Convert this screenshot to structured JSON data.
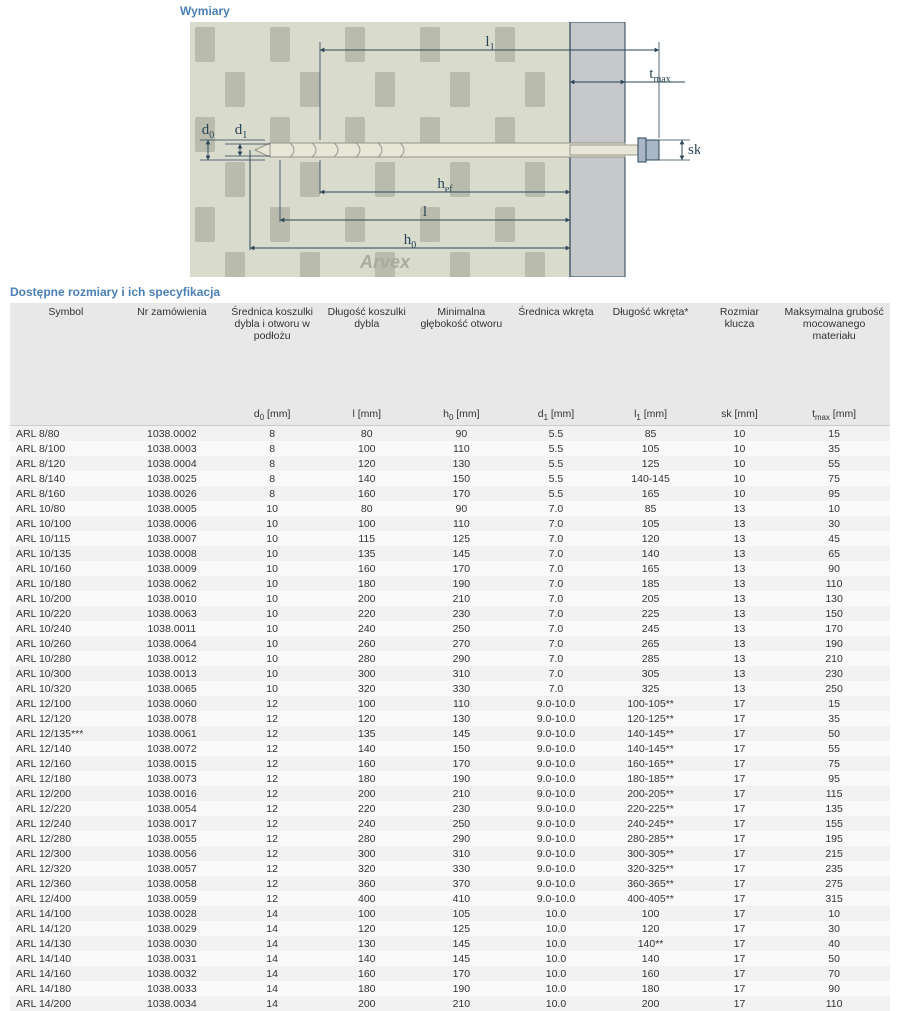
{
  "titles": {
    "dimensions": "Wymiary",
    "sizes": "Dostępne rozmiary i ich specyfikacja"
  },
  "diagram": {
    "labels": {
      "l1": "l",
      "l1sub": "1",
      "tmax": "t",
      "tmaxsub": "max",
      "sk": "sk",
      "d0": "d",
      "d0sub": "0",
      "d1": "d",
      "d1sub": "1",
      "hef": "h",
      "hefsub": "ef",
      "l": "l",
      "h0": "h",
      "h0sub": "0",
      "brand": "Arvex"
    },
    "colors": {
      "wall": "#d9dbcd",
      "bricks": "#b9bcac",
      "fixture": "#c6c8cc",
      "outline": "#2a4558",
      "anchor_body": "#e8e6d6",
      "anchor_stroke": "#98958a",
      "dim": "#2a4558",
      "text": "#2a4558",
      "bolt_head": "#a8b6c6"
    }
  },
  "table": {
    "columns": [
      {
        "top": "Symbol",
        "bot": ""
      },
      {
        "top": "Nr zamówienia",
        "bot": ""
      },
      {
        "top": "Średnica koszulki dybla i otworu w podłożu",
        "bot": "d<sub>0</sub> [mm]"
      },
      {
        "top": "Długość koszulki dybla",
        "bot": "l [mm]"
      },
      {
        "top": "Minimalna głębokość otworu",
        "bot": "h<sub>0</sub> [mm]"
      },
      {
        "top": "Średnica wkręta",
        "bot": "d<sub>1</sub> [mm]"
      },
      {
        "top": "Długość wkręta*",
        "bot": "l<sub>1</sub> [mm]"
      },
      {
        "top": "Rozmiar klucza",
        "bot": "sk [mm]"
      },
      {
        "top": "Maksymalna grubość mocowanego materiału",
        "bot": "t<sub>max</sub> [mm]"
      }
    ],
    "rows": [
      [
        "ARL 8/80",
        "1038.0002",
        "8",
        "80",
        "90",
        "5.5",
        "85",
        "10",
        "15"
      ],
      [
        "ARL 8/100",
        "1038.0003",
        "8",
        "100",
        "110",
        "5.5",
        "105",
        "10",
        "35"
      ],
      [
        "ARL 8/120",
        "1038.0004",
        "8",
        "120",
        "130",
        "5.5",
        "125",
        "10",
        "55"
      ],
      [
        "ARL 8/140",
        "1038.0025",
        "8",
        "140",
        "150",
        "5.5",
        "140-145",
        "10",
        "75"
      ],
      [
        "ARL 8/160",
        "1038.0026",
        "8",
        "160",
        "170",
        "5.5",
        "165",
        "10",
        "95"
      ],
      [
        "ARL 10/80",
        "1038.0005",
        "10",
        "80",
        "90",
        "7.0",
        "85",
        "13",
        "10"
      ],
      [
        "ARL 10/100",
        "1038.0006",
        "10",
        "100",
        "110",
        "7.0",
        "105",
        "13",
        "30"
      ],
      [
        "ARL 10/115",
        "1038.0007",
        "10",
        "115",
        "125",
        "7.0",
        "120",
        "13",
        "45"
      ],
      [
        "ARL 10/135",
        "1038.0008",
        "10",
        "135",
        "145",
        "7.0",
        "140",
        "13",
        "65"
      ],
      [
        "ARL 10/160",
        "1038.0009",
        "10",
        "160",
        "170",
        "7.0",
        "165",
        "13",
        "90"
      ],
      [
        "ARL 10/180",
        "1038.0062",
        "10",
        "180",
        "190",
        "7.0",
        "185",
        "13",
        "110"
      ],
      [
        "ARL 10/200",
        "1038.0010",
        "10",
        "200",
        "210",
        "7.0",
        "205",
        "13",
        "130"
      ],
      [
        "ARL 10/220",
        "1038.0063",
        "10",
        "220",
        "230",
        "7.0",
        "225",
        "13",
        "150"
      ],
      [
        "ARL 10/240",
        "1038.0011",
        "10",
        "240",
        "250",
        "7.0",
        "245",
        "13",
        "170"
      ],
      [
        "ARL 10/260",
        "1038.0064",
        "10",
        "260",
        "270",
        "7.0",
        "265",
        "13",
        "190"
      ],
      [
        "ARL 10/280",
        "1038.0012",
        "10",
        "280",
        "290",
        "7.0",
        "285",
        "13",
        "210"
      ],
      [
        "ARL 10/300",
        "1038.0013",
        "10",
        "300",
        "310",
        "7.0",
        "305",
        "13",
        "230"
      ],
      [
        "ARL 10/320",
        "1038.0065",
        "10",
        "320",
        "330",
        "7.0",
        "325",
        "13",
        "250"
      ],
      [
        "ARL 12/100",
        "1038.0060",
        "12",
        "100",
        "110",
        "9.0-10.0",
        "100-105**",
        "17",
        "15"
      ],
      [
        "ARL 12/120",
        "1038.0078",
        "12",
        "120",
        "130",
        "9.0-10.0",
        "120-125**",
        "17",
        "35"
      ],
      [
        "ARL 12/135***",
        "1038.0061",
        "12",
        "135",
        "145",
        "9.0-10.0",
        "140-145**",
        "17",
        "50"
      ],
      [
        "ARL 12/140",
        "1038.0072",
        "12",
        "140",
        "150",
        "9.0-10.0",
        "140-145**",
        "17",
        "55"
      ],
      [
        "ARL 12/160",
        "1038.0015",
        "12",
        "160",
        "170",
        "9.0-10.0",
        "160-165**",
        "17",
        "75"
      ],
      [
        "ARL 12/180",
        "1038.0073",
        "12",
        "180",
        "190",
        "9.0-10.0",
        "180-185**",
        "17",
        "95"
      ],
      [
        "ARL 12/200",
        "1038.0016",
        "12",
        "200",
        "210",
        "9.0-10.0",
        "200-205**",
        "17",
        "115"
      ],
      [
        "ARL 12/220",
        "1038.0054",
        "12",
        "220",
        "230",
        "9.0-10.0",
        "220-225**",
        "17",
        "135"
      ],
      [
        "ARL 12/240",
        "1038.0017",
        "12",
        "240",
        "250",
        "9.0-10.0",
        "240-245**",
        "17",
        "155"
      ],
      [
        "ARL 12/280",
        "1038.0055",
        "12",
        "280",
        "290",
        "9.0-10.0",
        "280-285**",
        "17",
        "195"
      ],
      [
        "ARL 12/300",
        "1038.0056",
        "12",
        "300",
        "310",
        "9.0-10.0",
        "300-305**",
        "17",
        "215"
      ],
      [
        "ARL 12/320",
        "1038.0057",
        "12",
        "320",
        "330",
        "9.0-10.0",
        "320-325**",
        "17",
        "235"
      ],
      [
        "ARL 12/360",
        "1038.0058",
        "12",
        "360",
        "370",
        "9.0-10.0",
        "360-365**",
        "17",
        "275"
      ],
      [
        "ARL 12/400",
        "1038.0059",
        "12",
        "400",
        "410",
        "9.0-10.0",
        "400-405**",
        "17",
        "315"
      ],
      [
        "ARL 14/100",
        "1038.0028",
        "14",
        "100",
        "105",
        "10.0",
        "100",
        "17",
        "10"
      ],
      [
        "ARL 14/120",
        "1038.0029",
        "14",
        "120",
        "125",
        "10.0",
        "120",
        "17",
        "30"
      ],
      [
        "ARL 14/130",
        "1038.0030",
        "14",
        "130",
        "145",
        "10.0",
        "140**",
        "17",
        "40"
      ],
      [
        "ARL 14/140",
        "1038.0031",
        "14",
        "140",
        "145",
        "10.0",
        "140",
        "17",
        "50"
      ],
      [
        "ARL 14/160",
        "1038.0032",
        "14",
        "160",
        "170",
        "10.0",
        "160",
        "17",
        "70"
      ],
      [
        "ARL 14/180",
        "1038.0033",
        "14",
        "180",
        "190",
        "10.0",
        "180",
        "17",
        "90"
      ],
      [
        "ARL 14/200",
        "1038.0034",
        "14",
        "200",
        "210",
        "10.0",
        "200",
        "17",
        "110"
      ]
    ],
    "col_widths": [
      "90px",
      "80px",
      "80px",
      "70px",
      "80px",
      "70px",
      "80px",
      "60px",
      "90px"
    ]
  }
}
